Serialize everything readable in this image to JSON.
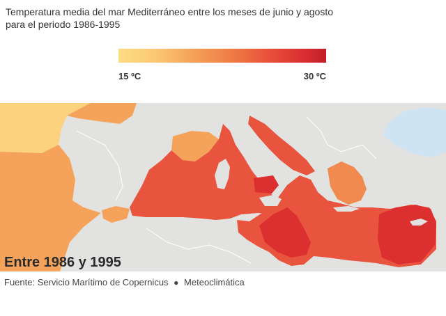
{
  "title": {
    "line1": "Temperatura media del mar Mediterráneo entre los meses de junio y agosto",
    "line2": "para el periodo 1986-1995"
  },
  "legend": {
    "min_label": "15 ºC",
    "max_label": "30 ºC",
    "min_value": 15,
    "max_value": 30,
    "colors": [
      "#fddc84",
      "#fcc872",
      "#f5a35a",
      "#ef7b45",
      "#e8523a",
      "#dc3032",
      "#c11f2a"
    ]
  },
  "map": {
    "period_label": "Entre 1986 y 1995",
    "colors": {
      "land": "#e2e2e0",
      "borders": "#ffffff",
      "ocean_cool": "#fcd27e",
      "ocean_mild": "#f5a35a",
      "sea_warm": "#e8543e",
      "sea_hot": "#dc2f2f",
      "aegean_cooler": "#f08a4e",
      "black_sea": "#cfe4f2"
    }
  },
  "source": {
    "text": "Fuente: Servicio Marítimo de Copernicus",
    "separator": "●",
    "brand": "Meteoclimática"
  }
}
